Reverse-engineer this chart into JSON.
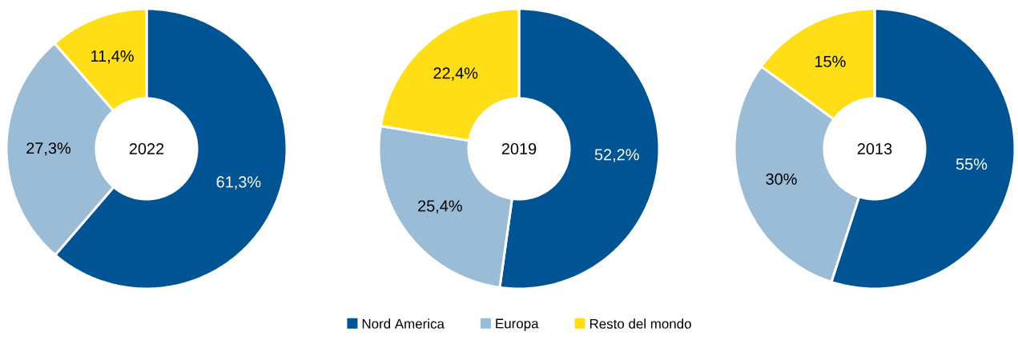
{
  "chart_data": [
    {
      "type": "donut",
      "title": "2022",
      "categories": [
        null,
        null,
        null
      ],
      "values": [
        61.3,
        27.3,
        11.4
      ],
      "colors": [
        "#005494",
        "#9bbcd6",
        "#ffde17"
      ],
      "value_labels": [
        "61,3%",
        "27,3%",
        "11,4%"
      ]
    },
    {
      "type": "donut",
      "title": "2019",
      "categories": [
        "Nord America",
        "Europa",
        "Resto del mondo"
      ],
      "values": [
        52.2,
        25.4,
        22.4
      ],
      "colors": [
        "#005494",
        "#9bbcd6",
        "#ffde17"
      ],
      "value_labels": [
        "52,2%",
        "25,4%",
        "22,4%"
      ],
      "legend": "bottom"
    },
    {
      "type": "donut",
      "title": "2013",
      "categories": [
        null,
        null,
        null
      ],
      "values": [
        55,
        30,
        15
      ],
      "colors": [
        "#005494",
        "#9bbcd6",
        "#ffde17"
      ],
      "value_labels": [
        "55%",
        "30%",
        "15%"
      ]
    }
  ]
}
